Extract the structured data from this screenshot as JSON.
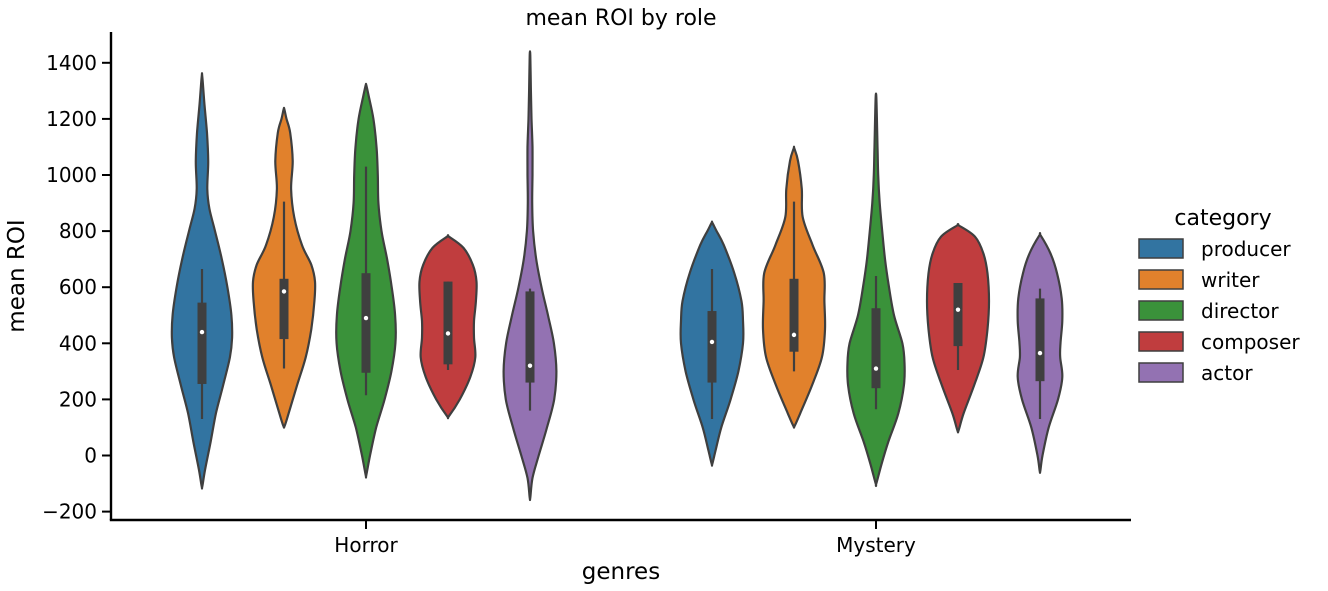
{
  "chart_data": {
    "type": "violin",
    "title": "mean ROI by role",
    "xlabel": "genres",
    "ylabel": "mean ROI",
    "categories": [
      "Horror",
      "Mystery"
    ],
    "ylim": [
      -230,
      1510
    ],
    "yticks": [
      -200,
      0,
      200,
      400,
      600,
      800,
      1000,
      1200,
      1400
    ],
    "ytick_labels": [
      "−200",
      "0",
      "200",
      "400",
      "600",
      "800",
      "1000",
      "1200",
      "1400"
    ],
    "grid": false,
    "legend": {
      "title": "category",
      "placement": "right"
    },
    "colors": {
      "producer": "#3274a1",
      "writer": "#e1812c",
      "director": "#3a923a",
      "composer": "#c03d3e",
      "actor": "#9372b2"
    },
    "series": [
      {
        "name": "producer",
        "groups": [
          {
            "category": "Horror",
            "min": -110,
            "max": 1350,
            "box": {
              "q1": 255,
              "median": 440,
              "q3": 545,
              "whisker_low": 130,
              "whisker_high": 665
            },
            "density": [
              [
                -110,
                0.01
              ],
              [
                -50,
                0.1
              ],
              [
                50,
                0.28
              ],
              [
                150,
                0.45
              ],
              [
                250,
                0.68
              ],
              [
                350,
                0.9
              ],
              [
                420,
                0.97
              ],
              [
                500,
                0.95
              ],
              [
                600,
                0.82
              ],
              [
                700,
                0.64
              ],
              [
                800,
                0.42
              ],
              [
                880,
                0.24
              ],
              [
                950,
                0.17
              ],
              [
                1050,
                0.2
              ],
              [
                1150,
                0.16
              ],
              [
                1250,
                0.08
              ],
              [
                1350,
                0.01
              ]
            ]
          },
          {
            "category": "Mystery",
            "min": -30,
            "max": 830,
            "box": {
              "q1": 260,
              "median": 405,
              "q3": 515,
              "whisker_low": 130,
              "whisker_high": 665
            },
            "density": [
              [
                -30,
                0.01
              ],
              [
                20,
                0.12
              ],
              [
                100,
                0.3
              ],
              [
                200,
                0.6
              ],
              [
                300,
                0.85
              ],
              [
                400,
                1.0
              ],
              [
                480,
                1.0
              ],
              [
                550,
                0.95
              ],
              [
                650,
                0.72
              ],
              [
                750,
                0.38
              ],
              [
                800,
                0.15
              ],
              [
                830,
                0.01
              ]
            ]
          }
        ]
      },
      {
        "name": "writer",
        "groups": [
          {
            "category": "Horror",
            "min": 105,
            "max": 1235,
            "box": {
              "q1": 415,
              "median": 585,
              "q3": 630,
              "whisker_low": 310,
              "whisker_high": 905
            },
            "density": [
              [
                105,
                0.02
              ],
              [
                150,
                0.15
              ],
              [
                250,
                0.42
              ],
              [
                350,
                0.7
              ],
              [
                450,
                0.88
              ],
              [
                550,
                0.98
              ],
              [
                620,
                1.0
              ],
              [
                680,
                0.88
              ],
              [
                750,
                0.58
              ],
              [
                850,
                0.33
              ],
              [
                950,
                0.23
              ],
              [
                1050,
                0.28
              ],
              [
                1150,
                0.2
              ],
              [
                1200,
                0.08
              ],
              [
                1235,
                0.01
              ]
            ]
          },
          {
            "category": "Mystery",
            "min": 105,
            "max": 1095,
            "box": {
              "q1": 370,
              "median": 430,
              "q3": 630,
              "whisker_low": 300,
              "whisker_high": 905
            },
            "density": [
              [
                105,
                0.02
              ],
              [
                150,
                0.2
              ],
              [
                250,
                0.58
              ],
              [
                350,
                0.9
              ],
              [
                450,
                1.0
              ],
              [
                550,
                0.98
              ],
              [
                650,
                0.96
              ],
              [
                750,
                0.6
              ],
              [
                850,
                0.28
              ],
              [
                950,
                0.25
              ],
              [
                1050,
                0.13
              ],
              [
                1095,
                0.01
              ]
            ]
          }
        ]
      },
      {
        "name": "director",
        "groups": [
          {
            "category": "Horror",
            "min": -70,
            "max": 1320,
            "box": {
              "q1": 295,
              "median": 490,
              "q3": 650,
              "whisker_low": 215,
              "whisker_high": 1030
            },
            "density": [
              [
                -70,
                0.01
              ],
              [
                0,
                0.13
              ],
              [
                100,
                0.33
              ],
              [
                200,
                0.6
              ],
              [
                300,
                0.82
              ],
              [
                400,
                0.95
              ],
              [
                500,
                0.94
              ],
              [
                600,
                0.83
              ],
              [
                700,
                0.68
              ],
              [
                800,
                0.5
              ],
              [
                900,
                0.4
              ],
              [
                1000,
                0.38
              ],
              [
                1100,
                0.34
              ],
              [
                1200,
                0.24
              ],
              [
                1280,
                0.09
              ],
              [
                1320,
                0.01
              ]
            ]
          },
          {
            "category": "Mystery",
            "min": -100,
            "max": 1280,
            "box": {
              "q1": 240,
              "median": 310,
              "q3": 525,
              "whisker_low": 165,
              "whisker_high": 640
            },
            "density": [
              [
                -100,
                0.01
              ],
              [
                -30,
                0.18
              ],
              [
                50,
                0.4
              ],
              [
                150,
                0.72
              ],
              [
                250,
                0.9
              ],
              [
                330,
                0.92
              ],
              [
                400,
                0.85
              ],
              [
                500,
                0.58
              ],
              [
                600,
                0.42
              ],
              [
                700,
                0.29
              ],
              [
                800,
                0.2
              ],
              [
                900,
                0.12
              ],
              [
                1000,
                0.07
              ],
              [
                1100,
                0.05
              ],
              [
                1200,
                0.03
              ],
              [
                1280,
                0.01
              ]
            ]
          }
        ]
      },
      {
        "name": "composer",
        "groups": [
          {
            "category": "Horror",
            "min": 140,
            "max": 780,
            "box": {
              "q1": 325,
              "median": 435,
              "q3": 620,
              "whisker_low": 305,
              "whisker_high": 620
            },
            "density": [
              [
                140,
                0.03
              ],
              [
                200,
                0.38
              ],
              [
                280,
                0.72
              ],
              [
                350,
                0.88
              ],
              [
                420,
                0.84
              ],
              [
                480,
                0.84
              ],
              [
                550,
                0.9
              ],
              [
                620,
                0.92
              ],
              [
                680,
                0.8
              ],
              [
                740,
                0.5
              ],
              [
                780,
                0.03
              ]
            ]
          },
          {
            "category": "Mystery",
            "min": 90,
            "max": 820,
            "box": {
              "q1": 390,
              "median": 520,
              "q3": 615,
              "whisker_low": 305,
              "whisker_high": 615
            },
            "density": [
              [
                90,
                0.02
              ],
              [
                150,
                0.18
              ],
              [
                250,
                0.52
              ],
              [
                350,
                0.82
              ],
              [
                450,
                0.95
              ],
              [
                550,
                1.0
              ],
              [
                650,
                0.95
              ],
              [
                720,
                0.82
              ],
              [
                780,
                0.55
              ],
              [
                820,
                0.03
              ]
            ]
          }
        ]
      },
      {
        "name": "actor",
        "groups": [
          {
            "category": "Horror",
            "min": -150,
            "max": 1425,
            "box": {
              "q1": 260,
              "median": 320,
              "q3": 585,
              "whisker_low": 160,
              "whisker_high": 595
            },
            "density": [
              [
                -150,
                0.01
              ],
              [
                -80,
                0.08
              ],
              [
                0,
                0.28
              ],
              [
                100,
                0.55
              ],
              [
                200,
                0.78
              ],
              [
                300,
                0.85
              ],
              [
                400,
                0.77
              ],
              [
                500,
                0.58
              ],
              [
                600,
                0.37
              ],
              [
                700,
                0.2
              ],
              [
                800,
                0.1
              ],
              [
                900,
                0.07
              ],
              [
                1000,
                0.08
              ],
              [
                1100,
                0.08
              ],
              [
                1200,
                0.05
              ],
              [
                1300,
                0.03
              ],
              [
                1425,
                0.01
              ]
            ]
          },
          {
            "category": "Mystery",
            "min": -55,
            "max": 785,
            "box": {
              "q1": 265,
              "median": 365,
              "q3": 560,
              "whisker_low": 130,
              "whisker_high": 595
            },
            "density": [
              [
                -55,
                0.01
              ],
              [
                0,
                0.08
              ],
              [
                100,
                0.28
              ],
              [
                200,
                0.58
              ],
              [
                280,
                0.72
              ],
              [
                350,
                0.65
              ],
              [
                400,
                0.66
              ],
              [
                480,
                0.72
              ],
              [
                560,
                0.7
              ],
              [
                650,
                0.55
              ],
              [
                720,
                0.34
              ],
              [
                785,
                0.02
              ]
            ]
          }
        ]
      }
    ]
  }
}
